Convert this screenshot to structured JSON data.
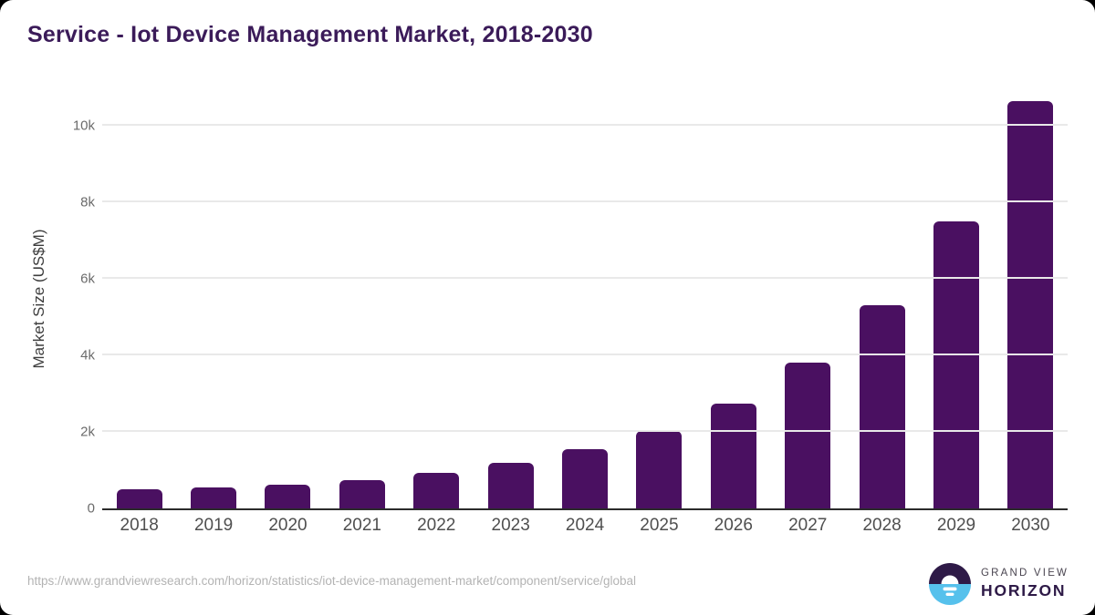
{
  "page": {
    "outer_background": "#000000",
    "card_background": "#ffffff"
  },
  "header": {
    "title": "Service - Iot Device Management Market, 2018-2030",
    "title_color": "#3b1b59"
  },
  "chart_data": {
    "type": "bar",
    "title": "Service - Iot Device Management Market, 2018-2030",
    "categories": [
      "2018",
      "2019",
      "2020",
      "2021",
      "2022",
      "2023",
      "2024",
      "2025",
      "2026",
      "2027",
      "2028",
      "2029",
      "2030"
    ],
    "values": [
      490,
      560,
      630,
      750,
      940,
      1190,
      1550,
      2020,
      2750,
      3820,
      5300,
      7500,
      10650
    ],
    "xlabel": "",
    "ylabel": "Market Size (US$M)",
    "ylim": [
      0,
      10950
    ],
    "ytick_values": [
      0,
      2000,
      4000,
      6000,
      8000,
      10000
    ],
    "ytick_labels": [
      "0",
      "2k",
      "4k",
      "6k",
      "8k",
      "10k"
    ],
    "grid": "horizontal-only",
    "legend": "none",
    "bar_color": "#4a1061",
    "axis_line_color": "#2b2b2b",
    "gridline_color": "#e9e9e9"
  },
  "footer": {
    "source_url": "https://www.grandviewresearch.com/horizon/statistics/iot-device-management-market/component/service/global",
    "logo": {
      "line1": "GRAND VIEW",
      "line2": "HORIZON",
      "circle_top_color": "#2e1a47",
      "circle_bottom_color": "#56c1ec",
      "glyph_color": "#ffffff"
    }
  }
}
